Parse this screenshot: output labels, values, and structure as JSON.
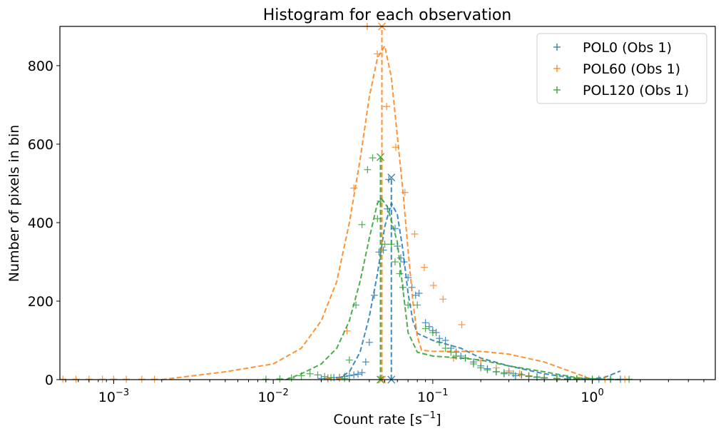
{
  "chart_data": {
    "type": "line",
    "title": "Histogram for each observation",
    "xlabel": "Count rate [s",
    "xlabel_sup": "−1",
    "xlabel_end": "]",
    "ylabel": "Number of pixels in bin",
    "xscale": "log",
    "xlim": [
      0.00046,
      5.9
    ],
    "ylim": [
      0,
      900
    ],
    "xticks": [
      {
        "v": 0.001,
        "b": "10",
        "e": "−3"
      },
      {
        "v": 0.01,
        "b": "10",
        "e": "−2"
      },
      {
        "v": 0.1,
        "b": "10",
        "e": "−1"
      },
      {
        "v": 1,
        "b": "10",
        "e": "0"
      }
    ],
    "yticks": [
      {
        "v": 0,
        "label": "0"
      },
      {
        "v": 200,
        "label": "200"
      },
      {
        "v": 400,
        "label": "400"
      },
      {
        "v": 600,
        "label": "600"
      },
      {
        "v": 800,
        "label": "800"
      }
    ],
    "legend_position": "top-right",
    "series": [
      {
        "name": "POL0 (Obs 1)",
        "color": "#1f77b4",
        "peak_x": 0.055,
        "peak_y": 515,
        "points": [
          [
            0.02,
            3
          ],
          [
            0.022,
            4
          ],
          [
            0.024,
            5
          ],
          [
            0.026,
            6
          ],
          [
            0.028,
            8
          ],
          [
            0.03,
            10
          ],
          [
            0.032,
            12
          ],
          [
            0.034,
            14
          ],
          [
            0.036,
            18
          ],
          [
            0.038,
            45
          ],
          [
            0.04,
            95
          ],
          [
            0.043,
            215
          ],
          [
            0.046,
            325
          ],
          [
            0.049,
            330
          ],
          [
            0.052,
            435
          ],
          [
            0.053,
            510
          ],
          [
            0.058,
            385
          ],
          [
            0.06,
            340
          ],
          [
            0.063,
            310
          ],
          [
            0.066,
            300
          ],
          [
            0.07,
            260
          ],
          [
            0.074,
            235
          ],
          [
            0.078,
            215
          ],
          [
            0.082,
            220
          ],
          [
            0.09,
            145
          ],
          [
            0.095,
            135
          ],
          [
            0.1,
            125
          ],
          [
            0.105,
            120
          ],
          [
            0.11,
            105
          ],
          [
            0.12,
            100
          ],
          [
            0.13,
            80
          ],
          [
            0.14,
            70
          ],
          [
            0.15,
            60
          ],
          [
            0.16,
            55
          ],
          [
            0.18,
            45
          ],
          [
            0.2,
            35
          ],
          [
            0.22,
            28
          ],
          [
            0.25,
            20
          ],
          [
            0.28,
            15
          ],
          [
            0.3,
            18
          ],
          [
            0.33,
            10
          ],
          [
            0.36,
            12
          ],
          [
            0.4,
            8
          ],
          [
            0.45,
            6
          ],
          [
            0.5,
            4
          ],
          [
            0.6,
            3
          ],
          [
            0.7,
            2
          ],
          [
            0.8,
            2
          ],
          [
            0.9,
            1
          ],
          [
            1.0,
            1
          ],
          [
            1.1,
            1
          ],
          [
            1.3,
            1
          ],
          [
            1.5,
            1
          ]
        ],
        "fit": [
          [
            0.025,
            0
          ],
          [
            0.03,
            20
          ],
          [
            0.035,
            70
          ],
          [
            0.04,
            160
          ],
          [
            0.045,
            270
          ],
          [
            0.05,
            390
          ],
          [
            0.055,
            450
          ],
          [
            0.06,
            420
          ],
          [
            0.065,
            330
          ],
          [
            0.07,
            220
          ],
          [
            0.075,
            150
          ],
          [
            0.08,
            118
          ],
          [
            0.1,
            100
          ],
          [
            0.15,
            80
          ],
          [
            0.2,
            55
          ],
          [
            0.3,
            35
          ],
          [
            0.5,
            15
          ],
          [
            0.8,
            3
          ],
          [
            1.0,
            2
          ],
          [
            1.2,
            6
          ],
          [
            1.5,
            22
          ]
        ]
      },
      {
        "name": "POL60 (Obs 1)",
        "color": "#ff7f0e",
        "peak_x": 0.048,
        "peak_y": 900,
        "points": [
          [
            0.00048,
            1
          ],
          [
            0.00058,
            1
          ],
          [
            0.0007,
            1
          ],
          [
            0.00085,
            1
          ],
          [
            0.001,
            1
          ],
          [
            0.0012,
            1
          ],
          [
            0.0015,
            1
          ],
          [
            0.0018,
            1
          ],
          [
            0.022,
            2
          ],
          [
            0.026,
            3
          ],
          [
            0.029,
            124
          ],
          [
            0.032,
            488
          ],
          [
            0.0388,
            900
          ],
          [
            0.0449,
            830
          ],
          [
            0.0513,
            696
          ],
          [
            0.0586,
            592
          ],
          [
            0.0669,
            477
          ],
          [
            0.077,
            371
          ],
          [
            0.0885,
            286
          ],
          [
            0.101,
            240
          ],
          [
            0.116,
            205
          ],
          [
            0.152,
            140
          ],
          [
            0.135,
            55
          ],
          [
            0.2,
            48
          ],
          [
            0.25,
            30
          ],
          [
            0.3,
            22
          ],
          [
            0.35,
            15
          ],
          [
            0.4,
            10
          ],
          [
            0.5,
            5
          ],
          [
            0.6,
            3
          ],
          [
            0.8,
            2
          ],
          [
            1.2,
            1
          ],
          [
            1.6,
            1
          ]
        ],
        "fit": [
          [
            0.002,
            0
          ],
          [
            0.005,
            20
          ],
          [
            0.01,
            40
          ],
          [
            0.015,
            80
          ],
          [
            0.02,
            150
          ],
          [
            0.025,
            250
          ],
          [
            0.03,
            400
          ],
          [
            0.035,
            560
          ],
          [
            0.04,
            720
          ],
          [
            0.045,
            820
          ],
          [
            0.05,
            850
          ],
          [
            0.055,
            770
          ],
          [
            0.06,
            620
          ],
          [
            0.065,
            480
          ],
          [
            0.07,
            330
          ],
          [
            0.075,
            200
          ],
          [
            0.08,
            110
          ],
          [
            0.085,
            75
          ],
          [
            0.1,
            72
          ],
          [
            0.2,
            72
          ],
          [
            0.3,
            65
          ],
          [
            0.5,
            45
          ],
          [
            0.8,
            15
          ],
          [
            1.0,
            0
          ]
        ]
      },
      {
        "name": "POL120 (Obs 1)",
        "color": "#2ca02c",
        "peak_x": 0.047,
        "peak_y": 567,
        "points": [
          [
            0.009,
            1
          ],
          [
            0.011,
            2
          ],
          [
            0.013,
            4
          ],
          [
            0.015,
            10
          ],
          [
            0.017,
            15
          ],
          [
            0.019,
            12
          ],
          [
            0.021,
            8
          ],
          [
            0.023,
            5
          ],
          [
            0.028,
            3
          ],
          [
            0.03,
            50
          ],
          [
            0.033,
            190
          ],
          [
            0.036,
            395
          ],
          [
            0.039,
            535
          ],
          [
            0.042,
            565
          ],
          [
            0.045,
            410
          ],
          [
            0.047,
            455
          ],
          [
            0.05,
            345
          ],
          [
            0.055,
            345
          ],
          [
            0.058,
            300
          ],
          [
            0.062,
            270
          ],
          [
            0.065,
            235
          ],
          [
            0.07,
            190
          ],
          [
            0.08,
            190
          ],
          [
            0.09,
            130
          ],
          [
            0.1,
            120
          ],
          [
            0.11,
            95
          ],
          [
            0.12,
            80
          ],
          [
            0.13,
            70
          ],
          [
            0.14,
            60
          ],
          [
            0.16,
            55
          ],
          [
            0.18,
            40
          ],
          [
            0.2,
            30
          ],
          [
            0.22,
            25
          ],
          [
            0.25,
            20
          ],
          [
            0.28,
            18
          ],
          [
            0.32,
            15
          ],
          [
            0.36,
            12
          ],
          [
            0.4,
            9
          ],
          [
            0.45,
            7
          ],
          [
            0.5,
            5
          ],
          [
            0.6,
            3
          ],
          [
            0.7,
            2
          ],
          [
            0.8,
            2
          ],
          [
            1.0,
            1
          ],
          [
            1.3,
            1
          ],
          [
            1.7,
            1
          ]
        ],
        "fit": [
          [
            0.012,
            0
          ],
          [
            0.015,
            15
          ],
          [
            0.02,
            40
          ],
          [
            0.025,
            80
          ],
          [
            0.03,
            150
          ],
          [
            0.035,
            250
          ],
          [
            0.04,
            360
          ],
          [
            0.045,
            450
          ],
          [
            0.048,
            460
          ],
          [
            0.052,
            440
          ],
          [
            0.06,
            350
          ],
          [
            0.065,
            230
          ],
          [
            0.07,
            120
          ],
          [
            0.08,
            70
          ],
          [
            0.1,
            60
          ],
          [
            0.15,
            55
          ],
          [
            0.2,
            50
          ],
          [
            0.3,
            35
          ],
          [
            0.5,
            20
          ],
          [
            0.8,
            5
          ],
          [
            1.0,
            2
          ],
          [
            1.5,
            0
          ]
        ]
      }
    ]
  }
}
